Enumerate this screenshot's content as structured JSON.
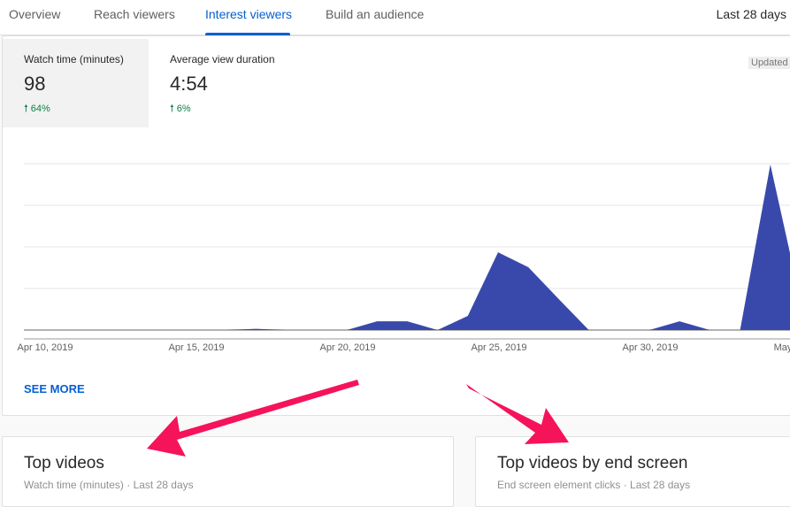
{
  "tabs": [
    {
      "label": "Overview",
      "active": false
    },
    {
      "label": "Reach viewers",
      "active": false
    },
    {
      "label": "Interest viewers",
      "active": true
    },
    {
      "label": "Build an audience",
      "active": false
    }
  ],
  "period": "Last 28 days",
  "metrics": [
    {
      "label": "Watch time (minutes)",
      "value": "98",
      "delta": "64%",
      "delta_icon": "arrow-up-icon",
      "selected": true
    },
    {
      "label": "Average view duration",
      "value": "4:54",
      "delta": "6%",
      "delta_icon": "arrow-up-icon",
      "selected": false
    }
  ],
  "updated": "Updated",
  "see_more": "SEE MORE",
  "colors": {
    "accent": "#065fd4",
    "series": "#3949ab",
    "positive": "#0b8043",
    "annotation_arrow": "#f5135a"
  },
  "chart_data": {
    "type": "area",
    "x": [
      "Apr 10",
      "Apr 11",
      "Apr 12",
      "Apr 13",
      "Apr 14",
      "Apr 15",
      "Apr 16",
      "Apr 17",
      "Apr 18",
      "Apr 19",
      "Apr 20",
      "Apr 21",
      "Apr 22",
      "Apr 23",
      "Apr 24",
      "Apr 25",
      "Apr 26",
      "Apr 27",
      "Apr 28",
      "Apr 29",
      "Apr 30",
      "May 1",
      "May 2",
      "May 3",
      "May 4",
      "May 5"
    ],
    "values": [
      0,
      0,
      0,
      0,
      0,
      0,
      0,
      0.03,
      0,
      0,
      0,
      0.21,
      0.21,
      0,
      0.34,
      1.87,
      1.51,
      0.75,
      0,
      0,
      0,
      0.21,
      0,
      0,
      3.98,
      0.7
    ],
    "ylim": [
      0,
      4
    ],
    "grid": true,
    "tick_labels": [
      "Apr 10, 2019",
      "Apr 15, 2019",
      "Apr 20, 2019",
      "Apr 25, 2019",
      "Apr 30, 2019",
      "May"
    ],
    "y_tick_labels_visible": false
  },
  "cards": [
    {
      "title": "Top videos",
      "subtitle": "Watch time (minutes) · Last 28 days"
    },
    {
      "title": "Top videos by end screen",
      "subtitle": "End screen element clicks · Last 28 days"
    }
  ]
}
